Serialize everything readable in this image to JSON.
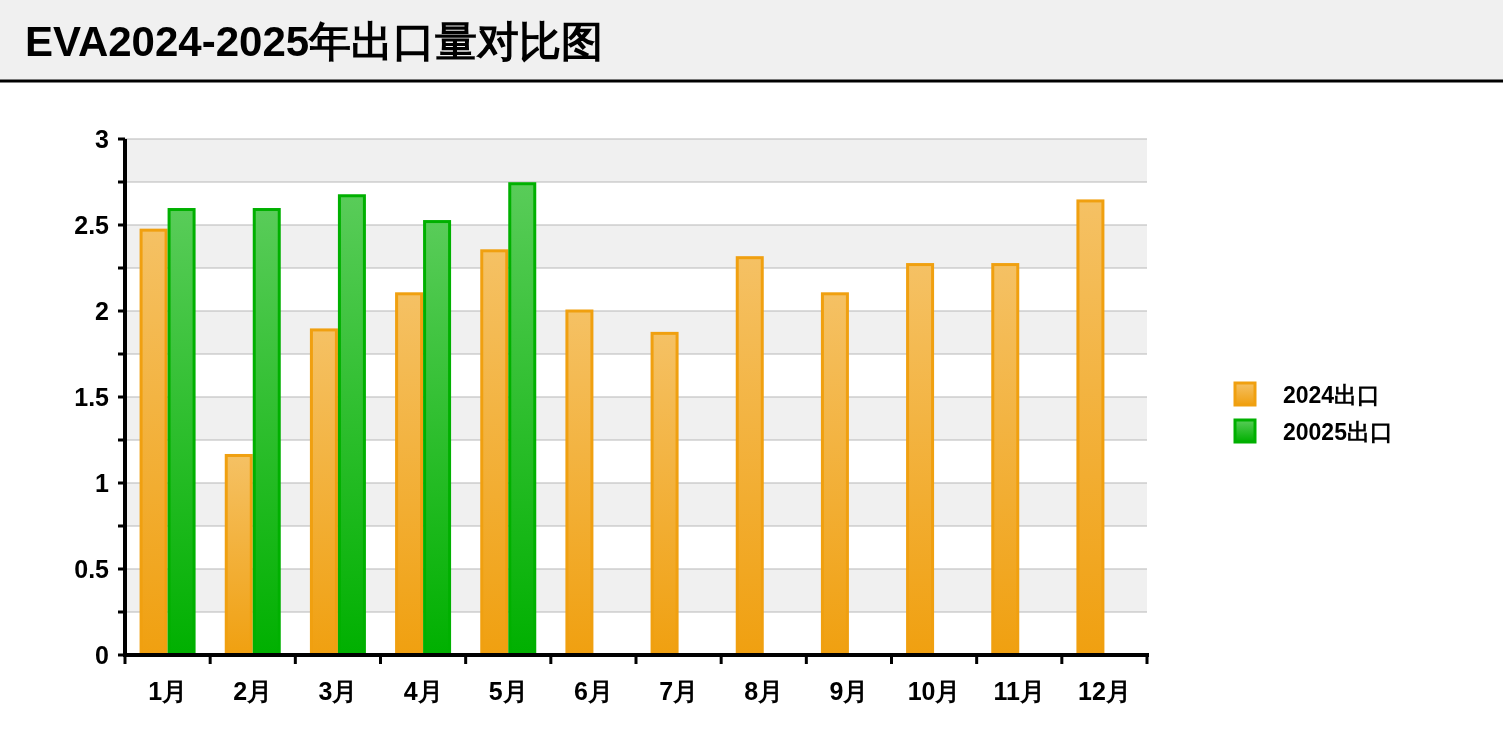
{
  "chart_data": {
    "type": "bar",
    "title": "EVA2024-2025年出口量对比图",
    "categories": [
      "1月",
      "2月",
      "3月",
      "4月",
      "5月",
      "6月",
      "7月",
      "8月",
      "9月",
      "10月",
      "11月",
      "12月"
    ],
    "series": [
      {
        "name": "2024出口",
        "color": "#f0a010",
        "values": [
          2.47,
          1.16,
          1.89,
          2.1,
          2.35,
          2.0,
          1.87,
          2.31,
          2.1,
          2.27,
          2.27,
          2.64
        ]
      },
      {
        "name": "20025出口",
        "color": "#00b000",
        "values": [
          2.59,
          2.59,
          2.67,
          2.52,
          2.74,
          null,
          null,
          null,
          null,
          null,
          null,
          null
        ]
      }
    ],
    "ylim": [
      0,
      3
    ],
    "yticks": [
      0,
      {
        "value": 0.25,
        "label": null
      },
      0.5,
      {
        "value": 0.75,
        "label": null
      },
      1,
      {
        "value": 1.25,
        "label": null
      },
      1.5,
      {
        "value": 1.75,
        "label": null
      },
      2,
      {
        "value": 2.25,
        "label": null
      },
      2.5,
      {
        "value": 2.75,
        "label": null
      },
      3
    ],
    "grid": "y",
    "legend": "right"
  }
}
